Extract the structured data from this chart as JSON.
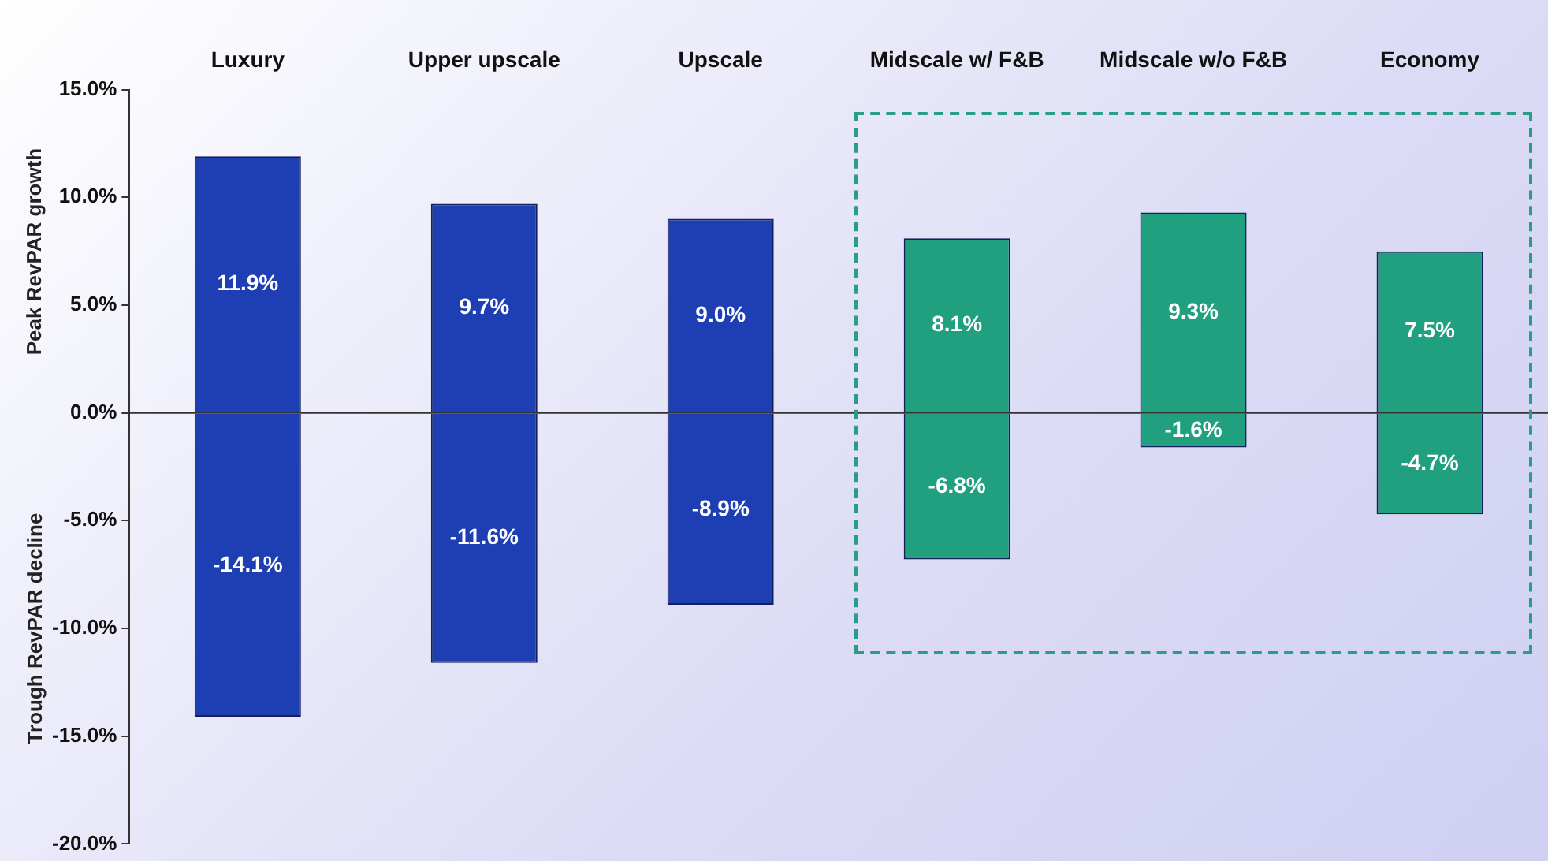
{
  "chart_data": {
    "type": "bar",
    "stacked": true,
    "ylabel": "Peak RevPAR growth",
    "annotations": [
      "Trough RevPAR decline"
    ],
    "categories": [
      "Luxury",
      "Upper upscale",
      "Upscale",
      "Midscale w/ F&B",
      "Midscale w/o F&B",
      "Economy"
    ],
    "series": [
      {
        "colors": [
          "#1e3fb4",
          "#1e3fb4",
          "#1e3fb4",
          "#20a07e",
          "#20a07e",
          "#20a07e"
        ],
        "values": [
          11.9,
          9.7,
          9.0,
          8.1,
          9.3,
          7.5
        ],
        "value_labels": [
          "11.9%",
          "9.7%",
          "9.0%",
          "8.1%",
          "9.3%",
          "7.5%"
        ]
      },
      {
        "colors": [
          "#1e3fb4",
          "#1e3fb4",
          "#1e3fb4",
          "#20a07e",
          "#20a07e",
          "#20a07e"
        ],
        "values": [
          -14.1,
          -11.6,
          -8.9,
          -6.8,
          -1.6,
          -4.7
        ],
        "value_labels": [
          "-14.1%",
          "-11.6%",
          "-8.9%",
          "-6.8%",
          "-1.6%",
          "-4.7%"
        ]
      }
    ],
    "ylim": [
      -20,
      15
    ],
    "yticks": [
      {
        "value": -20,
        "label": "-20.0%"
      },
      {
        "value": -15,
        "label": "-15.0%"
      },
      {
        "value": -10,
        "label": "-10.0%"
      },
      {
        "value": -5,
        "label": "-5.0%"
      },
      {
        "value": 0,
        "label": "0.0%"
      },
      {
        "value": 5,
        "label": "5.0%"
      },
      {
        "value": 10,
        "label": "10.0%"
      },
      {
        "value": 15,
        "label": "15.0%"
      }
    ],
    "ref_lines": [
      {
        "axis": "y",
        "value": 0,
        "color": "#333333"
      }
    ],
    "grid": false,
    "legend": false
  }
}
